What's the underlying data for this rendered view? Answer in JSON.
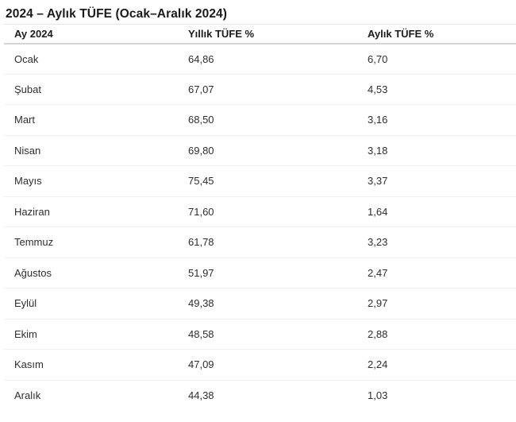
{
  "page": {
    "title": "2024 – Aylık TÜFE (Ocak–Aralık 2024)"
  },
  "table": {
    "columns": [
      "Ay 2024",
      "Yıllık TÜFE %",
      "Aylık TÜFE %"
    ],
    "rows": [
      [
        "Ocak",
        "64,86",
        "6,70"
      ],
      [
        "Şubat",
        "67,07",
        "4,53"
      ],
      [
        "Mart",
        "68,50",
        "3,16"
      ],
      [
        "Nisan",
        "69,80",
        "3,18"
      ],
      [
        "Mayıs",
        "75,45",
        "3,37"
      ],
      [
        "Haziran",
        "71,60",
        "1,64"
      ],
      [
        "Temmuz",
        "61,78",
        "3,23"
      ],
      [
        "Ağustos",
        "51,97",
        "2,47"
      ],
      [
        "Eylül",
        "49,38",
        "2,97"
      ],
      [
        "Ekim",
        "48,58",
        "2,88"
      ],
      [
        "Kasım",
        "47,09",
        "2,24"
      ],
      [
        "Aralık",
        "44,38",
        "1,03"
      ]
    ]
  },
  "chart_data": {
    "type": "table",
    "title": "2024 – Aylık TÜFE (Ocak–Aralık 2024)",
    "columns": [
      "Ay 2024",
      "Yıllık TÜFE %",
      "Aylık TÜFE %"
    ],
    "categories": [
      "Ocak",
      "Şubat",
      "Mart",
      "Nisan",
      "Mayıs",
      "Haziran",
      "Temmuz",
      "Ağustos",
      "Eylül",
      "Ekim",
      "Kasım",
      "Aralık"
    ],
    "series": [
      {
        "name": "Yıllık TÜFE %",
        "values": [
          64.86,
          67.07,
          68.5,
          69.8,
          75.45,
          71.6,
          61.78,
          51.97,
          49.38,
          48.58,
          47.09,
          44.38
        ]
      },
      {
        "name": "Aylık TÜFE %",
        "values": [
          6.7,
          4.53,
          3.16,
          3.18,
          3.37,
          1.64,
          3.23,
          2.47,
          2.97,
          2.88,
          2.24,
          1.03
        ]
      }
    ],
    "decimal_separator": ",",
    "layout": {
      "grid": "horizontal-row-dividers",
      "legend": "none"
    }
  },
  "colors": {
    "background": "#ffffff",
    "title_text": "#1a1a1a",
    "header_text": "#1c1c1c",
    "body_text": "#2e2e2e",
    "header_border_top": "#e6e6e6",
    "header_border_bottom": "#d5d5d5",
    "row_divider": "#f0f0f0"
  }
}
